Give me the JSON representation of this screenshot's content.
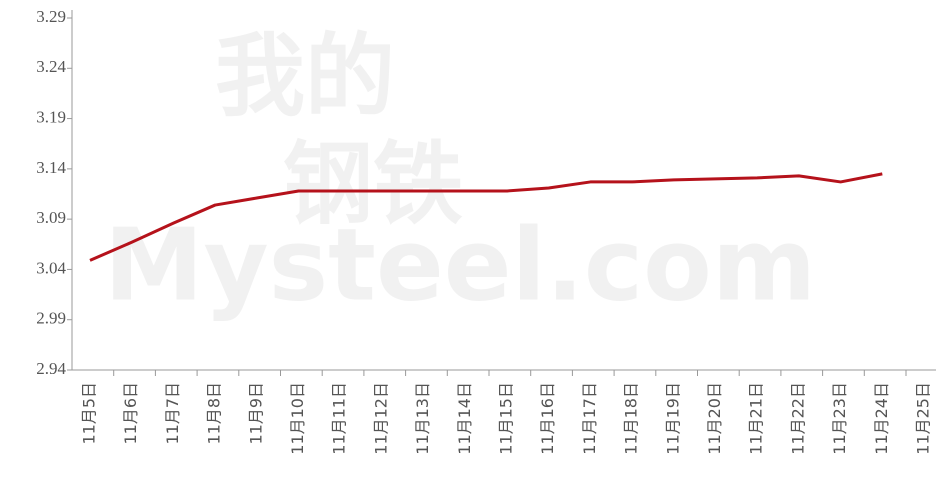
{
  "chart_data": {
    "type": "line",
    "watermark": [
      "我的",
      "钢铁",
      "Mysteel.com"
    ],
    "categories": [
      "11月5日",
      "11月6日",
      "11月7日",
      "11月8日",
      "11月9日",
      "11月10日",
      "11月11日",
      "11月12日",
      "11月13日",
      "11月14日",
      "11月15日",
      "11月16日",
      "11月17日",
      "11月18日",
      "11月19日",
      "11月20日",
      "11月21日",
      "11月22日",
      "11月23日",
      "11月24日",
      "11月25日"
    ],
    "values": [
      3.049,
      3.067,
      3.086,
      3.104,
      3.111,
      3.118,
      3.118,
      3.118,
      3.118,
      3.118,
      3.118,
      3.121,
      3.127,
      3.127,
      3.129,
      3.13,
      3.131,
      3.133,
      3.127,
      3.135,
      null
    ],
    "color": "#b5121b",
    "ylim": [
      2.94,
      3.29
    ],
    "yticks": [
      2.94,
      2.99,
      3.04,
      3.09,
      3.14,
      3.19,
      3.24,
      3.29
    ],
    "grid": false
  }
}
